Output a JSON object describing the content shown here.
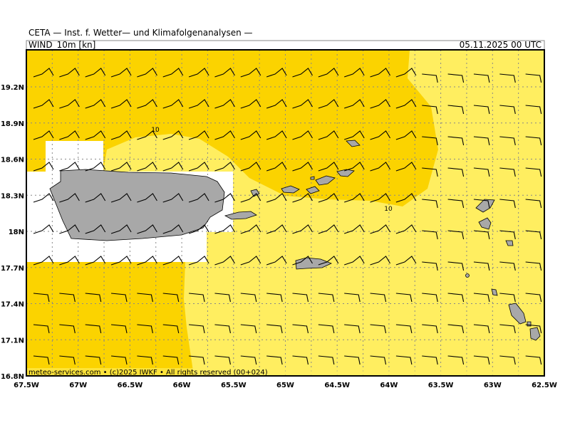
{
  "header": {
    "title": "CETA — Inst. f. Wetter— und Klimafolgenanalysen —",
    "field": "WIND_10m [kn]",
    "valid_time": "05.11.2025 00 UTC"
  },
  "map": {
    "x_labels": [
      "67.5W",
      "67W",
      "66.5W",
      "66W",
      "65.5W",
      "65W",
      "64.5W",
      "64W",
      "63.5W",
      "63W",
      "62.5W"
    ],
    "y_labels": [
      "19.2N",
      "18.9N",
      "18.6N",
      "18.3N",
      "18N",
      "17.7N",
      "17.4N",
      "17.1N",
      "16.8N"
    ],
    "contour_labels": [
      "10",
      "10"
    ]
  },
  "footer": "meteo-services.com • (c)2025 IWKF • All rights reserved (00+024)"
}
